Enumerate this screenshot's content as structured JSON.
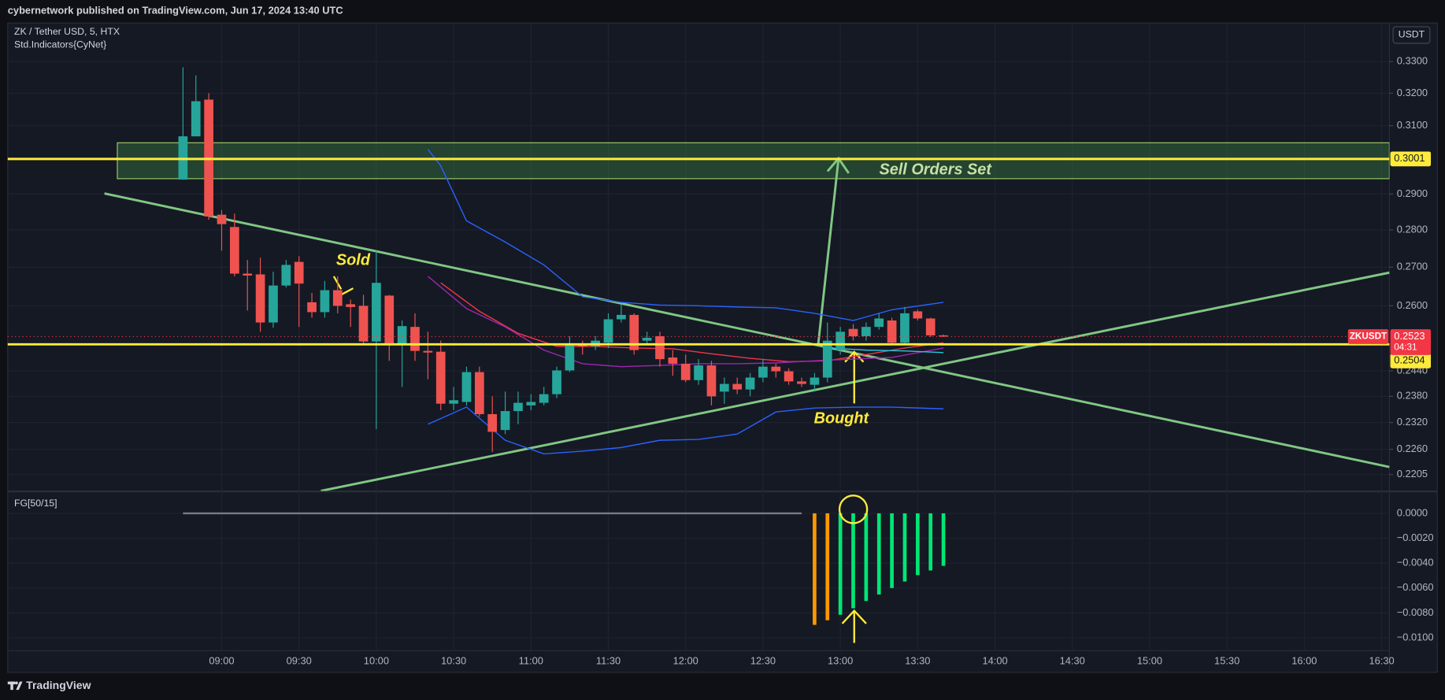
{
  "chart_data": {
    "type": "candlestick",
    "header": "cybernetwork published on TradingView.com, Jun 17, 2024 13:40 UTC",
    "title": "ZK / Tether USD, 5, HTX",
    "subtitle": "Std.Indicators{CyNet}",
    "currency": "USDT",
    "footer": "TradingView",
    "log_scale": true,
    "grid": true,
    "up_color": "#26a69a",
    "down_color": "#ef5350",
    "x": [
      "08:45",
      "08:50",
      "08:55",
      "09:00",
      "09:05",
      "09:10",
      "09:15",
      "09:20",
      "09:25",
      "09:30",
      "09:35",
      "09:40",
      "09:45",
      "09:50",
      "09:55",
      "10:00",
      "10:05",
      "10:10",
      "10:15",
      "10:20",
      "10:25",
      "10:30",
      "10:35",
      "10:40",
      "10:45",
      "10:50",
      "10:55",
      "11:00",
      "11:05",
      "11:10",
      "11:15",
      "11:20",
      "11:25",
      "11:30",
      "11:35",
      "11:40",
      "11:45",
      "11:50",
      "11:55",
      "12:00",
      "12:05",
      "12:10",
      "12:15",
      "12:20",
      "12:25",
      "12:30",
      "12:35",
      "12:40",
      "12:45",
      "12:50",
      "12:55",
      "13:00",
      "13:05",
      "13:10",
      "13:15",
      "13:20",
      "13:25",
      "13:30",
      "13:35",
      "13:40"
    ],
    "open": [
      0.2941,
      0.3068,
      0.318,
      0.2842,
      0.2808,
      0.2683,
      0.2681,
      0.2558,
      0.2652,
      0.2714,
      0.2609,
      0.2584,
      0.264,
      0.2604,
      0.26,
      0.2511,
      0.2626,
      0.2506,
      0.2547,
      0.2488,
      0.2486,
      0.2363,
      0.2367,
      0.2437,
      0.2339,
      0.2303,
      0.2346,
      0.2359,
      0.2365,
      0.2385,
      0.2441,
      0.2504,
      0.2499,
      0.2508,
      0.2566,
      0.2577,
      0.2513,
      0.2524,
      0.2472,
      0.2457,
      0.2418,
      0.2453,
      0.2391,
      0.2409,
      0.2396,
      0.2424,
      0.245,
      0.2439,
      0.2415,
      0.2407,
      0.2424,
      0.249,
      0.2542,
      0.2524,
      0.2547,
      0.2563,
      0.2508,
      0.2586,
      0.2568,
      0.2526
    ],
    "high": [
      0.3282,
      0.3256,
      0.32,
      0.2855,
      0.2845,
      0.2719,
      0.2725,
      0.2688,
      0.2719,
      0.2729,
      0.2633,
      0.2664,
      0.2676,
      0.2616,
      0.2628,
      0.2744,
      0.2628,
      0.2563,
      0.2581,
      0.2535,
      0.2513,
      0.2402,
      0.245,
      0.245,
      0.238,
      0.2391,
      0.2391,
      0.2385,
      0.2402,
      0.245,
      0.2524,
      0.2513,
      0.2524,
      0.2581,
      0.2604,
      0.2581,
      0.2535,
      0.2535,
      0.249,
      0.2479,
      0.2468,
      0.2464,
      0.2424,
      0.2424,
      0.2435,
      0.2468,
      0.2457,
      0.2446,
      0.2424,
      0.2435,
      0.2558,
      0.2547,
      0.2554,
      0.2558,
      0.2581,
      0.257,
      0.2597,
      0.259,
      0.257,
      0.2528
    ],
    "low": [
      0.2941,
      0.3068,
      0.2828,
      0.2744,
      0.2676,
      0.2588,
      0.2535,
      0.2545,
      0.2647,
      0.2547,
      0.257,
      0.257,
      0.2581,
      0.2547,
      0.2502,
      0.2305,
      0.2464,
      0.2402,
      0.2464,
      0.242,
      0.2348,
      0.2348,
      0.2359,
      0.2333,
      0.2254,
      0.2294,
      0.2316,
      0.2348,
      0.2359,
      0.2376,
      0.2437,
      0.2479,
      0.249,
      0.2495,
      0.2558,
      0.2479,
      0.2502,
      0.245,
      0.2428,
      0.2413,
      0.2407,
      0.2359,
      0.2363,
      0.2385,
      0.238,
      0.2413,
      0.2424,
      0.2407,
      0.2402,
      0.2391,
      0.2413,
      0.2479,
      0.2513,
      0.2513,
      0.254,
      0.2502,
      0.2502,
      0.2563,
      0.2522,
      0.2522
    ],
    "close": [
      0.3068,
      0.3175,
      0.2837,
      0.2816,
      0.2683,
      0.2678,
      0.2558,
      0.2652,
      0.2706,
      0.2657,
      0.2584,
      0.264,
      0.26,
      0.2597,
      0.2511,
      0.2659,
      0.2506,
      0.2549,
      0.2488,
      0.2484,
      0.2363,
      0.2371,
      0.2437,
      0.2339,
      0.2299,
      0.2346,
      0.2365,
      0.2367,
      0.2385,
      0.2441,
      0.2504,
      0.2499,
      0.2513,
      0.2566,
      0.2577,
      0.249,
      0.252,
      0.2468,
      0.2457,
      0.2418,
      0.2453,
      0.238,
      0.2409,
      0.2396,
      0.2424,
      0.245,
      0.2439,
      0.2415,
      0.2409,
      0.2424,
      0.2513,
      0.2535,
      0.2524,
      0.2547,
      0.2568,
      0.2508,
      0.2581,
      0.2568,
      0.2526,
      0.2523
    ],
    "xlim": [
      "07:37",
      "16:33"
    ],
    "xticks": [
      "09:00",
      "09:30",
      "10:00",
      "10:30",
      "11:00",
      "11:30",
      "12:00",
      "12:30",
      "13:00",
      "13:30",
      "14:00",
      "14:30",
      "15:00",
      "15:30",
      "16:00",
      "16:30"
    ],
    "ylim": [
      0.217,
      0.3427
    ],
    "yticks": [
      {
        "value": 0.33,
        "label": "0.3300"
      },
      {
        "value": 0.32,
        "label": "0.3200"
      },
      {
        "value": 0.31,
        "label": "0.3100"
      },
      {
        "value": 0.29,
        "label": "0.2900"
      },
      {
        "value": 0.28,
        "label": "0.2800"
      },
      {
        "value": 0.27,
        "label": "0.2700"
      },
      {
        "value": 0.26,
        "label": "0.2600"
      },
      {
        "value": 0.244,
        "label": "0.2440"
      },
      {
        "value": 0.238,
        "label": "0.2380"
      },
      {
        "value": 0.232,
        "label": "0.2320"
      },
      {
        "value": 0.226,
        "label": "0.2260"
      },
      0.2205
    ],
    "indicators": [
      {
        "color": "#2962ff",
        "x": [
          "10:20",
          "10:25",
          "10:35",
          "10:50",
          "11:05",
          "11:20",
          "11:35",
          "11:50",
          "12:05",
          "12:20",
          "12:35",
          "12:50",
          "13:05",
          "13:20",
          "13:40"
        ],
        "values": [
          0.3029,
          0.2981,
          0.2825,
          0.2767,
          0.2706,
          0.2623,
          0.2609,
          0.2602,
          0.26,
          0.2597,
          0.2595,
          0.2581,
          0.2563,
          0.259,
          0.2609
        ]
      },
      {
        "color": "#2962ff",
        "x": [
          "10:20",
          "10:35",
          "10:50",
          "11:05",
          "11:20",
          "11:35",
          "11:50",
          "12:05",
          "12:20",
          "12:35",
          "12:50",
          "13:05",
          "13:20",
          "13:40"
        ],
        "values": [
          0.2316,
          0.2355,
          0.228,
          0.225,
          0.2256,
          0.2264,
          0.228,
          0.2282,
          0.2294,
          0.2344,
          0.2353,
          0.2355,
          0.2355,
          0.2351
        ]
      },
      {
        "color": "#f23645",
        "x": [
          "10:25",
          "10:40",
          "10:55",
          "11:10",
          "11:25",
          "11:40",
          "11:55",
          "12:10",
          "12:25",
          "12:40",
          "12:55",
          "13:10",
          "13:25",
          "13:40"
        ],
        "values": [
          0.2659,
          0.2586,
          0.2531,
          0.2499,
          0.2499,
          0.2495,
          0.2493,
          0.2481,
          0.247,
          0.2462,
          0.2464,
          0.2479,
          0.2495,
          0.2508
        ]
      },
      {
        "color": "#9c27b0",
        "x": [
          "10:20",
          "10:35",
          "10:50",
          "11:05",
          "11:20",
          "11:35",
          "11:50",
          "12:05",
          "12:20",
          "12:35",
          "12:50",
          "13:05",
          "13:20",
          "13:40"
        ],
        "values": [
          0.2676,
          0.2593,
          0.2547,
          0.249,
          0.2457,
          0.245,
          0.2453,
          0.2457,
          0.2457,
          0.2459,
          0.2464,
          0.2468,
          0.2472,
          0.2495
        ]
      },
      {
        "color": "#26c6da",
        "x": [
          "12:55",
          "13:10",
          "13:25",
          "13:40"
        ],
        "values": [
          0.2495,
          0.249,
          0.2488,
          0.2484
        ]
      }
    ],
    "levels": [
      {
        "value": 0.3001,
        "color": "#ffeb3b"
      },
      {
        "value": 0.2504,
        "color": "#ffeb3b"
      }
    ],
    "last_price": {
      "symbol": "ZKUSDT",
      "value": 0.2523,
      "countdown": "04:31",
      "color": "#f23645"
    },
    "annotations": [
      "Sold",
      "Bought",
      "Sell Orders Set"
    ],
    "fg": {
      "name": "FG[50/15]",
      "ylim": [
        -0.011,
        0.0018
      ],
      "yticks": [
        {
          "value": 0,
          "label": "0.0000"
        },
        {
          "value": -0.002,
          "label": "−0.0020"
        },
        {
          "value": -0.004,
          "label": "−0.0040"
        },
        {
          "value": -0.006,
          "label": "−0.0060"
        },
        {
          "value": -0.008,
          "label": "−0.0080"
        },
        {
          "value": -0.01,
          "label": "−0.0100"
        }
      ],
      "line": {
        "x": [
          "08:45",
          "12:45"
        ],
        "values": [
          0,
          0
        ],
        "color": "#787b86"
      },
      "bars": {
        "x": [
          "12:50",
          "12:55",
          "13:00",
          "13:05",
          "13:10",
          "13:15",
          "13:20",
          "13:25",
          "13:30",
          "13:35",
          "13:40"
        ],
        "values": [
          -0.00896,
          -0.00859,
          -0.00815,
          -0.00763,
          -0.00704,
          -0.00652,
          -0.006,
          -0.00548,
          -0.00496,
          -0.00459,
          -0.00422
        ],
        "colors": [
          "#ff9800",
          "#ff9800",
          "#00e676",
          "#00e676",
          "#00e676",
          "#00e676",
          "#00e676",
          "#00e676",
          "#00e676",
          "#00e676",
          "#00e676"
        ]
      }
    }
  }
}
